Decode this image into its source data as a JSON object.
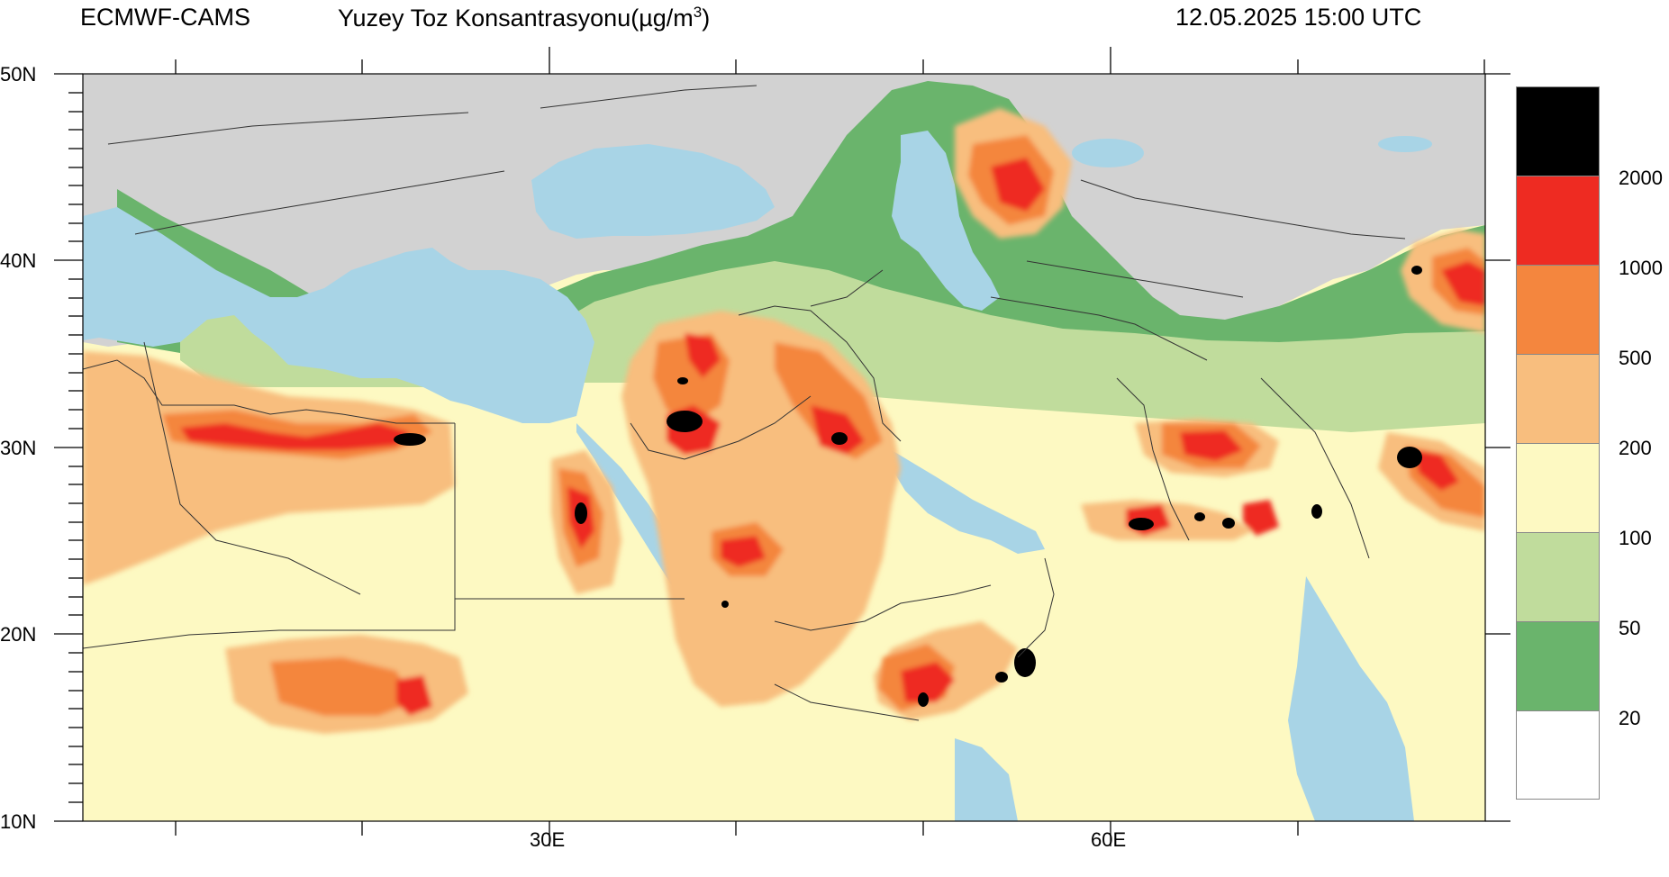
{
  "header": {
    "source": "ECMWF-CAMS",
    "product": "Yuzey Toz Konsantrasyonu(µg/m",
    "unit_sup": "3",
    "unit_close": ")",
    "valid_time": "12.05.2025 15:00 UTC"
  },
  "axes": {
    "lat_labels": [
      "50N",
      "40N",
      "30N",
      "20N",
      "10N"
    ],
    "lon_labels": [
      "30E",
      "60E"
    ]
  },
  "colors": {
    "ocean": "#a8d4e6",
    "land_nodata": "#d2d2d2",
    "lvl_20": "#6ab46c",
    "lvl_50": "#c0dc9c",
    "lvl_100": "#fdf9c2",
    "lvl_200": "#f8be7e",
    "lvl_500": "#f4863e",
    "lvl_1000": "#ee2b22",
    "lvl_2000": "#000000"
  },
  "legend": {
    "thresholds": [
      "2000",
      "1000",
      "500",
      "200",
      "100",
      "50",
      "20"
    ],
    "swatches": [
      "#000000",
      "#ee2b22",
      "#f4863e",
      "#f8be7e",
      "#fdf9c2",
      "#c0dc9c",
      "#6ab46c",
      "#ffffff"
    ]
  }
}
